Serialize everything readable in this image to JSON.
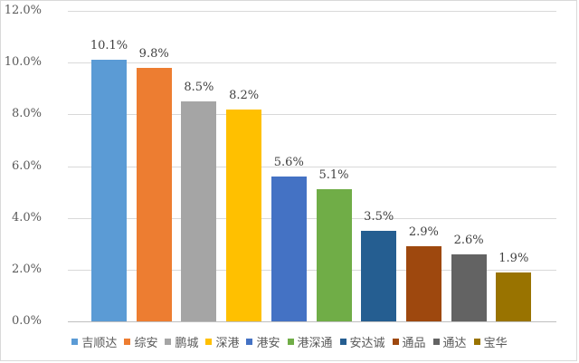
{
  "chart_data": {
    "type": "bar",
    "title": "",
    "xlabel": "",
    "ylabel": "",
    "ylim": [
      0,
      12
    ],
    "y_ticks": [
      "0.0%",
      "2.0%",
      "4.0%",
      "6.0%",
      "8.0%",
      "10.0%",
      "12.0%"
    ],
    "grid": true,
    "legend_position": "bottom",
    "categories": [
      "吉顺达",
      "综安",
      "鹏城",
      "深港",
      "港安",
      "港深通",
      "安达诚",
      "通品",
      "通达",
      "宝华"
    ],
    "values": [
      10.1,
      9.8,
      8.5,
      8.2,
      5.6,
      5.1,
      3.5,
      2.9,
      2.6,
      1.9
    ],
    "data_labels": [
      "10.1%",
      "9.8%",
      "8.5%",
      "8.2%",
      "5.6%",
      "5.1%",
      "3.5%",
      "2.9%",
      "2.6%",
      "1.9%"
    ],
    "colors": [
      "#5b9bd5",
      "#ed7d31",
      "#a5a5a5",
      "#ffc000",
      "#4472c4",
      "#70ad47",
      "#255e91",
      "#9e480e",
      "#636363",
      "#997300"
    ]
  }
}
